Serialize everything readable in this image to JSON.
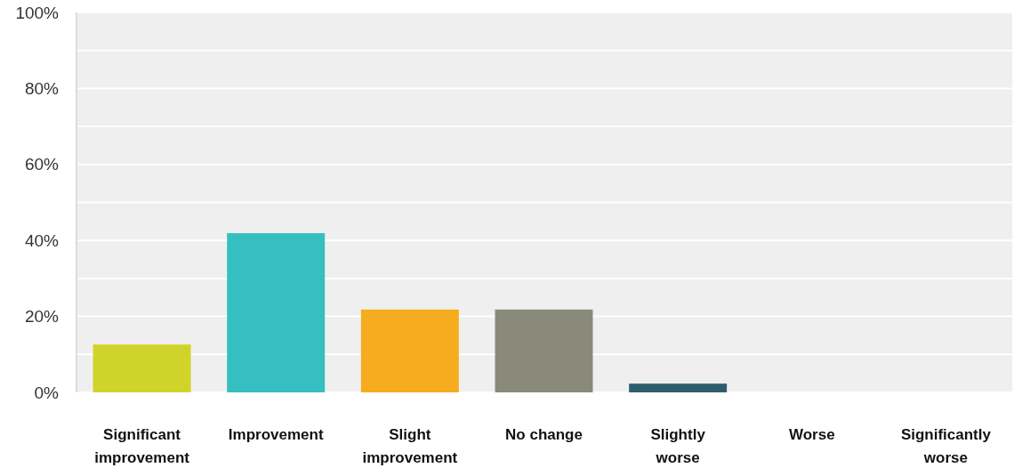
{
  "chart_data": {
    "type": "bar",
    "categories": [
      "Significant improvement",
      "Improvement",
      "Slight improvement",
      "No change",
      "Slightly worse",
      "Worse",
      "Significantly worse"
    ],
    "values": [
      12.6,
      41.9,
      21.8,
      21.8,
      2.3,
      0,
      0
    ],
    "colors": [
      "#d0d42a",
      "#35bfc0",
      "#f5ac1f",
      "#8a8a7a",
      "#2e5e6e",
      "#2e5e6e",
      "#2e5e6e"
    ],
    "ylim": [
      0,
      100
    ],
    "yticks": [
      {
        "value": 0,
        "label": "0%"
      },
      {
        "value": 10,
        "label": null
      },
      {
        "value": 20,
        "label": "20%"
      },
      {
        "value": 30,
        "label": null
      },
      {
        "value": 40,
        "label": "40%"
      },
      {
        "value": 50,
        "label": null
      },
      {
        "value": 60,
        "label": "60%"
      },
      {
        "value": 70,
        "label": null
      },
      {
        "value": 80,
        "label": "80%"
      },
      {
        "value": 90,
        "label": null
      },
      {
        "value": 100,
        "label": "100%"
      }
    ],
    "grid": "y"
  }
}
